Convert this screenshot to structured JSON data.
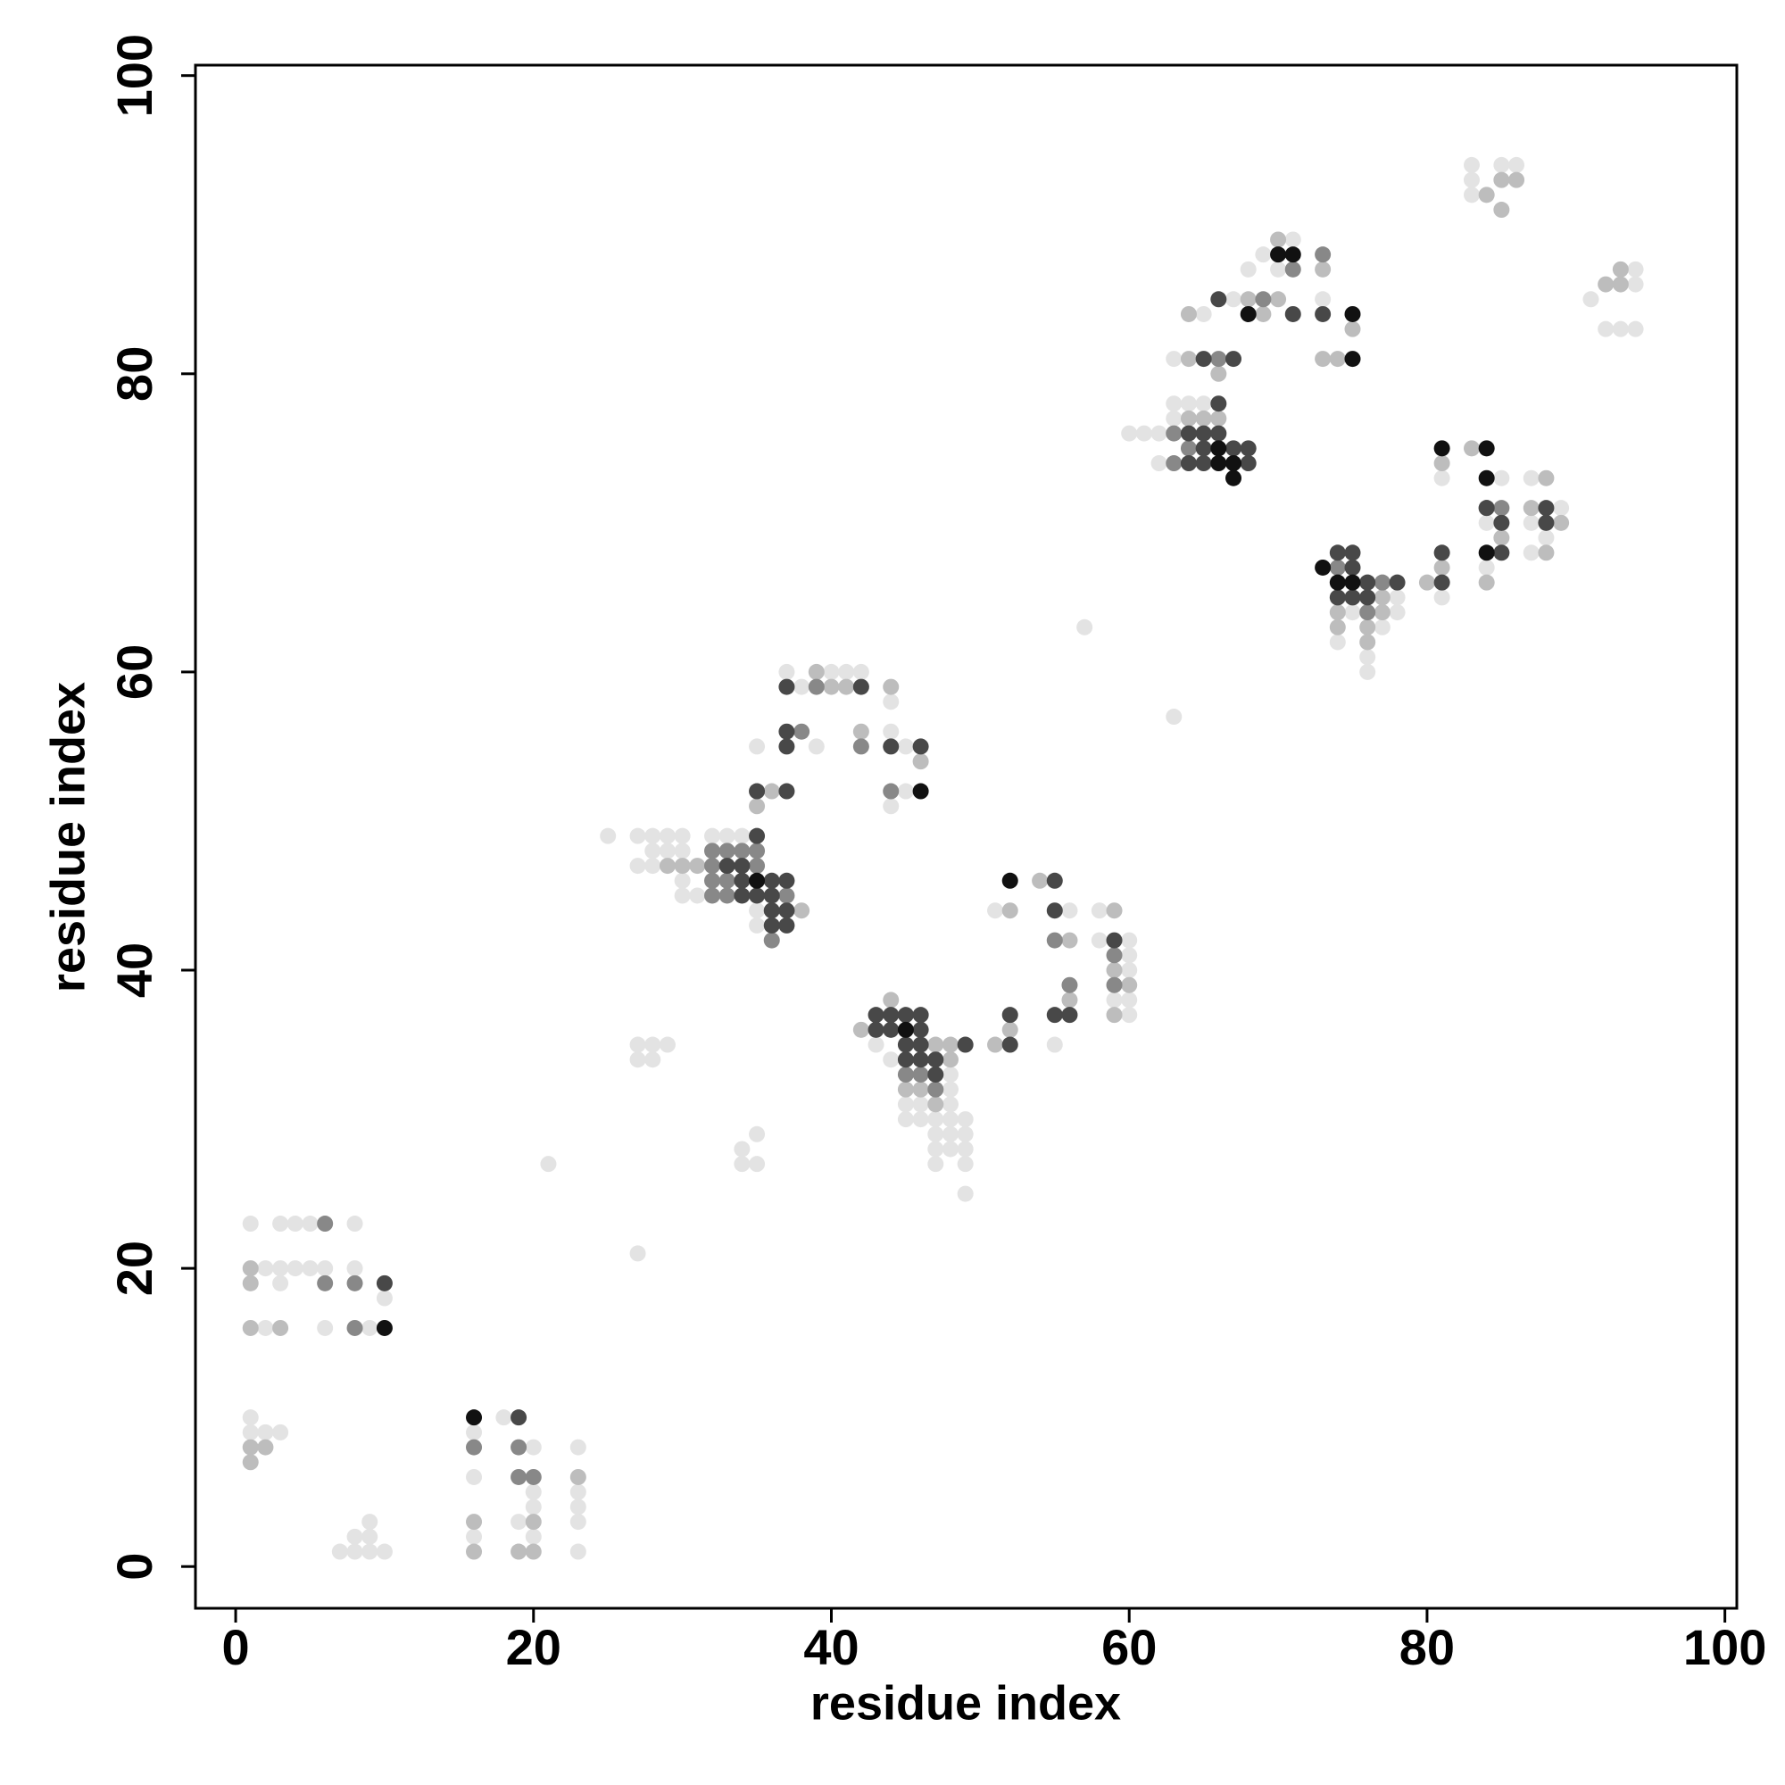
{
  "chart_data": {
    "type": "scatter",
    "x_label": "residue index",
    "y_label": "residue index",
    "xlim": [
      -2.7,
      100.8
    ],
    "ylim": [
      -2.8,
      100.7
    ],
    "xticks": [
      0,
      20,
      40,
      60,
      80,
      100
    ],
    "yticks": [
      0,
      20,
      40,
      60,
      80,
      100
    ],
    "series": [
      {
        "color": "#e3e3e3",
        "x": [
          1,
          3,
          4,
          5,
          8,
          2,
          3,
          4,
          5,
          6,
          8,
          3,
          10,
          2,
          6,
          9,
          1,
          1,
          2,
          3,
          7,
          8,
          9,
          10,
          8,
          9,
          9,
          16,
          16,
          16,
          18,
          19,
          20,
          20,
          20,
          20,
          23,
          23,
          23,
          23,
          23,
          21,
          27,
          27,
          28,
          29,
          27,
          28,
          34,
          35,
          34,
          35,
          25,
          27,
          28,
          29,
          30,
          32,
          33,
          34,
          28,
          29,
          30,
          27,
          28,
          30,
          30,
          31,
          35,
          35,
          37,
          40,
          41,
          42,
          38,
          44,
          44,
          35,
          39,
          45,
          45,
          44,
          43,
          44,
          48,
          48,
          45,
          46,
          48,
          45,
          46,
          47,
          48,
          49,
          47,
          48,
          49,
          47,
          48,
          49,
          47,
          49,
          49,
          51,
          56,
          55,
          58,
          58,
          60,
          60,
          60,
          59,
          60,
          60,
          57,
          63,
          63,
          64,
          65,
          63,
          60,
          61,
          62,
          62,
          63,
          65,
          67,
          69,
          68,
          70,
          71,
          73,
          83,
          85,
          86,
          83,
          83,
          94,
          94,
          91,
          92,
          93,
          94,
          78,
          75,
          78,
          77,
          74,
          76,
          76,
          81,
          81,
          85,
          84,
          84,
          87,
          89,
          87,
          88,
          87
        ],
        "values": [
          23,
          23,
          23,
          23,
          23,
          20,
          20,
          20,
          20,
          20,
          20,
          19,
          18,
          16,
          16,
          16,
          10,
          9,
          9,
          9,
          1,
          1,
          1,
          1,
          2,
          2,
          3,
          9,
          6,
          2,
          10,
          3,
          8,
          5,
          4,
          2,
          8,
          5,
          4,
          3,
          1,
          27,
          21,
          35,
          35,
          35,
          34,
          34,
          28,
          29,
          27,
          27,
          49,
          49,
          49,
          49,
          49,
          49,
          49,
          49,
          48,
          48,
          48,
          47,
          47,
          46,
          45,
          45,
          44,
          43,
          60,
          60,
          60,
          60,
          59,
          58,
          56,
          55,
          55,
          55,
          52,
          51,
          35,
          34,
          33,
          32,
          31,
          31,
          31,
          30,
          30,
          30,
          30,
          30,
          29,
          29,
          29,
          28,
          28,
          28,
          27,
          27,
          25,
          44,
          44,
          35,
          44,
          42,
          42,
          41,
          40,
          38,
          38,
          37,
          63,
          57,
          78,
          78,
          78,
          77,
          76,
          76,
          76,
          74,
          81,
          84,
          85,
          88,
          87,
          87,
          89,
          85,
          94,
          94,
          94,
          93,
          92,
          87,
          86,
          85,
          83,
          83,
          83,
          65,
          64,
          64,
          63,
          62,
          61,
          60,
          65,
          73,
          73,
          70,
          67,
          73,
          71,
          70,
          69,
          68
        ]
      },
      {
        "color": "#bdbdbd",
        "x": [
          1,
          1,
          1,
          3,
          1,
          2,
          1,
          16,
          16,
          19,
          20,
          20,
          23,
          29,
          30,
          31,
          38,
          36,
          35,
          40,
          41,
          44,
          42,
          46,
          39,
          44,
          42,
          47,
          48,
          48,
          45,
          46,
          47,
          52,
          52,
          51,
          54,
          56,
          56,
          59,
          59,
          60,
          59,
          64,
          65,
          66,
          64,
          66,
          64,
          68,
          70,
          73,
          70,
          69,
          73,
          74,
          75,
          85,
          86,
          84,
          85,
          93,
          92,
          93,
          77,
          77,
          74,
          76,
          76,
          74,
          80,
          81,
          81,
          83,
          85,
          88,
          87,
          89,
          84,
          88
        ],
        "values": [
          20,
          19,
          16,
          16,
          8,
          8,
          7,
          3,
          1,
          1,
          3,
          1,
          6,
          47,
          47,
          47,
          44,
          52,
          51,
          59,
          59,
          59,
          56,
          54,
          60,
          38,
          36,
          35,
          34,
          35,
          32,
          32,
          31,
          44,
          36,
          35,
          46,
          42,
          38,
          44,
          40,
          39,
          37,
          77,
          77,
          77,
          81,
          80,
          84,
          85,
          85,
          87,
          89,
          84,
          81,
          81,
          83,
          93,
          93,
          92,
          91,
          87,
          86,
          86,
          65,
          64,
          63,
          63,
          62,
          64,
          66,
          67,
          74,
          75,
          69,
          73,
          71,
          70,
          66,
          68
        ]
      },
      {
        "color": "#888888",
        "x": [
          6,
          6,
          8,
          8,
          16,
          19,
          19,
          20,
          32,
          33,
          34,
          35,
          32,
          32,
          33,
          32,
          33,
          35,
          37,
          36,
          39,
          38,
          42,
          44,
          45,
          46,
          47,
          55,
          56,
          59,
          59,
          63,
          63,
          64,
          66,
          69,
          71,
          73,
          74,
          76,
          77,
          84,
          85
        ],
        "values": [
          23,
          19,
          19,
          16,
          8,
          8,
          6,
          6,
          48,
          48,
          48,
          48,
          47,
          46,
          46,
          45,
          45,
          47,
          45,
          42,
          59,
          56,
          55,
          52,
          33,
          33,
          32,
          42,
          39,
          41,
          39,
          76,
          74,
          75,
          81,
          85,
          87,
          88,
          67,
          64,
          66,
          71,
          71
        ]
      },
      {
        "color": "#484848",
        "x": [
          10,
          19,
          33,
          34,
          34,
          36,
          37,
          34,
          35,
          36,
          36,
          37,
          36,
          37,
          35,
          37,
          42,
          37,
          37,
          44,
          46,
          35,
          37,
          43,
          44,
          45,
          46,
          43,
          44,
          46,
          45,
          46,
          49,
          45,
          46,
          47,
          47,
          52,
          52,
          55,
          55,
          55,
          56,
          59,
          66,
          64,
          65,
          66,
          65,
          67,
          68,
          64,
          65,
          68,
          65,
          67,
          66,
          73,
          74,
          75,
          75,
          74,
          75,
          76,
          76,
          78,
          81,
          81,
          84,
          85,
          85,
          88,
          88,
          71
        ],
        "values": [
          19,
          10,
          47,
          47,
          46,
          46,
          46,
          45,
          45,
          45,
          44,
          44,
          43,
          43,
          49,
          59,
          59,
          56,
          55,
          55,
          55,
          52,
          52,
          37,
          37,
          37,
          37,
          36,
          36,
          36,
          35,
          35,
          35,
          34,
          34,
          34,
          33,
          37,
          35,
          46,
          44,
          37,
          37,
          42,
          78,
          76,
          76,
          76,
          75,
          75,
          75,
          74,
          74,
          74,
          81,
          81,
          85,
          84,
          68,
          68,
          67,
          65,
          65,
          65,
          66,
          66,
          68,
          66,
          71,
          70,
          68,
          71,
          70,
          84
        ]
      },
      {
        "color": "#111111",
        "x": [
          10,
          16,
          35,
          46,
          45,
          52,
          66,
          66,
          67,
          67,
          68,
          70,
          71,
          75,
          75,
          73,
          74,
          75,
          81,
          84,
          84,
          84
        ],
        "values": [
          16,
          10,
          46,
          52,
          36,
          46,
          75,
          74,
          74,
          73,
          84,
          88,
          88,
          84,
          81,
          67,
          66,
          66,
          75,
          75,
          73,
          68
        ]
      }
    ]
  }
}
